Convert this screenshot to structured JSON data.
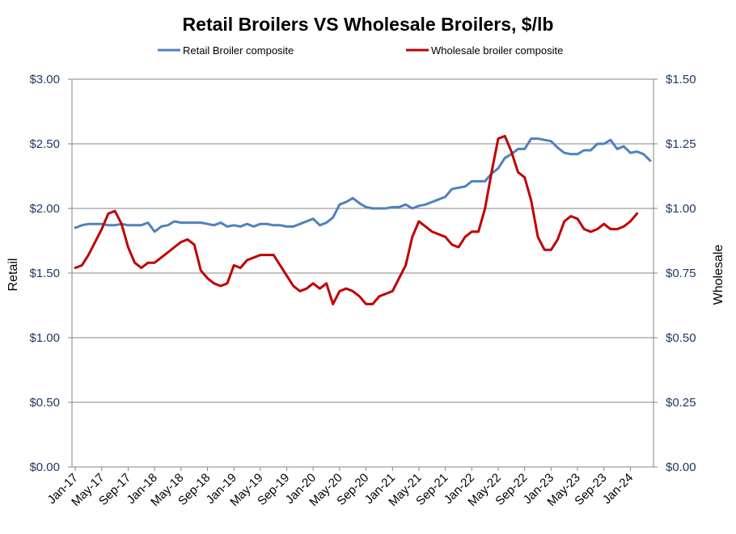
{
  "chart_data": {
    "type": "line",
    "title": "Retail Broilers VS Wholesale Broilers, $/lb",
    "ylabel_left": "Retail",
    "ylabel_right": "Wholesale",
    "ylim_left": [
      0,
      3
    ],
    "ylim_right": [
      0,
      1.5
    ],
    "yticks_left": [
      "$0.00",
      "$0.50",
      "$1.00",
      "$1.50",
      "$2.00",
      "$2.50",
      "$3.00"
    ],
    "yticks_right": [
      "$0.00",
      "$0.25",
      "$0.50",
      "$0.75",
      "$1.00",
      "$1.25",
      "$1.50"
    ],
    "x_tick_labels": [
      "Jan-17",
      "May-17",
      "Sep-17",
      "Jan-18",
      "May-18",
      "Sep-18",
      "Jan-19",
      "May-19",
      "Sep-19",
      "Jan-20",
      "May-20",
      "Sep-20",
      "Jan-21",
      "May-21",
      "Sep-21",
      "Jan-22",
      "May-22",
      "Sep-22",
      "Jan-23",
      "May-23",
      "Sep-23",
      "Jan-24"
    ],
    "x_start": "Jan-17",
    "grid": "horizontal",
    "legend_position": "top",
    "series": [
      {
        "name": "Retail Broiler composite",
        "axis": "left",
        "color": "#4f81bd",
        "values": [
          1.85,
          1.87,
          1.88,
          1.88,
          1.88,
          1.87,
          1.87,
          1.88,
          1.87,
          1.87,
          1.87,
          1.89,
          1.82,
          1.86,
          1.87,
          1.9,
          1.89,
          1.89,
          1.89,
          1.89,
          1.88,
          1.87,
          1.89,
          1.86,
          1.87,
          1.86,
          1.88,
          1.86,
          1.88,
          1.88,
          1.87,
          1.87,
          1.86,
          1.86,
          1.88,
          1.9,
          1.92,
          1.87,
          1.89,
          1.93,
          2.03,
          2.05,
          2.08,
          2.04,
          2.01,
          2.0,
          2.0,
          2.0,
          2.01,
          2.01,
          2.03,
          2.0,
          2.02,
          2.03,
          2.05,
          2.07,
          2.09,
          2.15,
          2.16,
          2.17,
          2.21,
          2.21,
          2.21,
          2.27,
          2.31,
          2.39,
          2.42,
          2.46,
          2.46,
          2.54,
          2.54,
          2.53,
          2.52,
          2.47,
          2.43,
          2.42,
          2.42,
          2.45,
          2.45,
          2.5,
          2.5,
          2.53,
          2.46,
          2.48,
          2.43,
          2.44,
          2.42,
          2.37
        ]
      },
      {
        "name": "Wholesale broiler composite",
        "axis": "right",
        "color": "#c00000",
        "values": [
          0.77,
          0.78,
          0.82,
          0.87,
          0.92,
          0.98,
          0.99,
          0.94,
          0.85,
          0.79,
          0.77,
          0.79,
          0.79,
          0.81,
          0.83,
          0.85,
          0.87,
          0.88,
          0.86,
          0.76,
          0.73,
          0.71,
          0.7,
          0.71,
          0.78,
          0.77,
          0.8,
          0.81,
          0.82,
          0.82,
          0.82,
          0.78,
          0.74,
          0.7,
          0.68,
          0.69,
          0.71,
          0.69,
          0.71,
          0.63,
          0.68,
          0.69,
          0.68,
          0.66,
          0.63,
          0.63,
          0.66,
          0.67,
          0.68,
          0.73,
          0.78,
          0.89,
          0.95,
          0.93,
          0.91,
          0.9,
          0.89,
          0.86,
          0.85,
          0.89,
          0.91,
          0.91,
          1.0,
          1.14,
          1.27,
          1.28,
          1.22,
          1.14,
          1.12,
          1.03,
          0.89,
          0.84,
          0.84,
          0.88,
          0.95,
          0.97,
          0.96,
          0.92,
          0.91,
          0.92,
          0.94,
          0.92,
          0.92,
          0.93,
          0.95,
          0.98
        ]
      }
    ]
  }
}
